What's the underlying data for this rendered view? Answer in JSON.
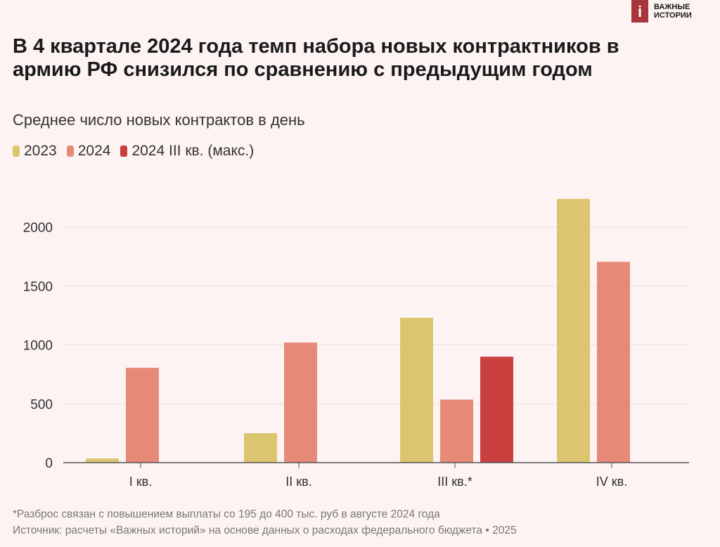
{
  "logo": {
    "text": "ВАЖНЫЕ ИСТОРИИ",
    "letter": "i"
  },
  "title": "В 4 квартале 2024 года темп набора новых контрактников в армию РФ снизился по сравнению с предыдущим годом",
  "subtitle": "Среднее число новых контрактов в день",
  "footnote": "*Разброс связан с повышением выплаты со 195 до 400 тыс. руб в августе 2024 года",
  "source": "Источник: расчеты «Важных историй» на основе данных о расходах федерального бюджета • 2025",
  "chart_data": {
    "type": "bar",
    "title": "В 4 квартале 2024 года темп набора новых контрактников в армию РФ снизился по сравнению с предыдущим годом",
    "subtitle": "Среднее число новых контрактов в день",
    "categories": [
      "I кв.",
      "II кв.",
      "III кв.*",
      "IV кв."
    ],
    "series": [
      {
        "name": "2023",
        "color": "#dcc56f",
        "values": [
          35,
          250,
          1230,
          2240
        ]
      },
      {
        "name": "2024",
        "color": "#e68a78",
        "values": [
          805,
          1020,
          535,
          1705
        ]
      },
      {
        "name": "2024 III кв. (макс.)",
        "color": "#c9403f",
        "values": [
          null,
          null,
          900,
          null
        ]
      }
    ],
    "ylim": [
      0,
      2200
    ],
    "yticks": [
      0,
      500,
      1000,
      1500,
      2000
    ],
    "grid": true,
    "legend": "top-left"
  }
}
